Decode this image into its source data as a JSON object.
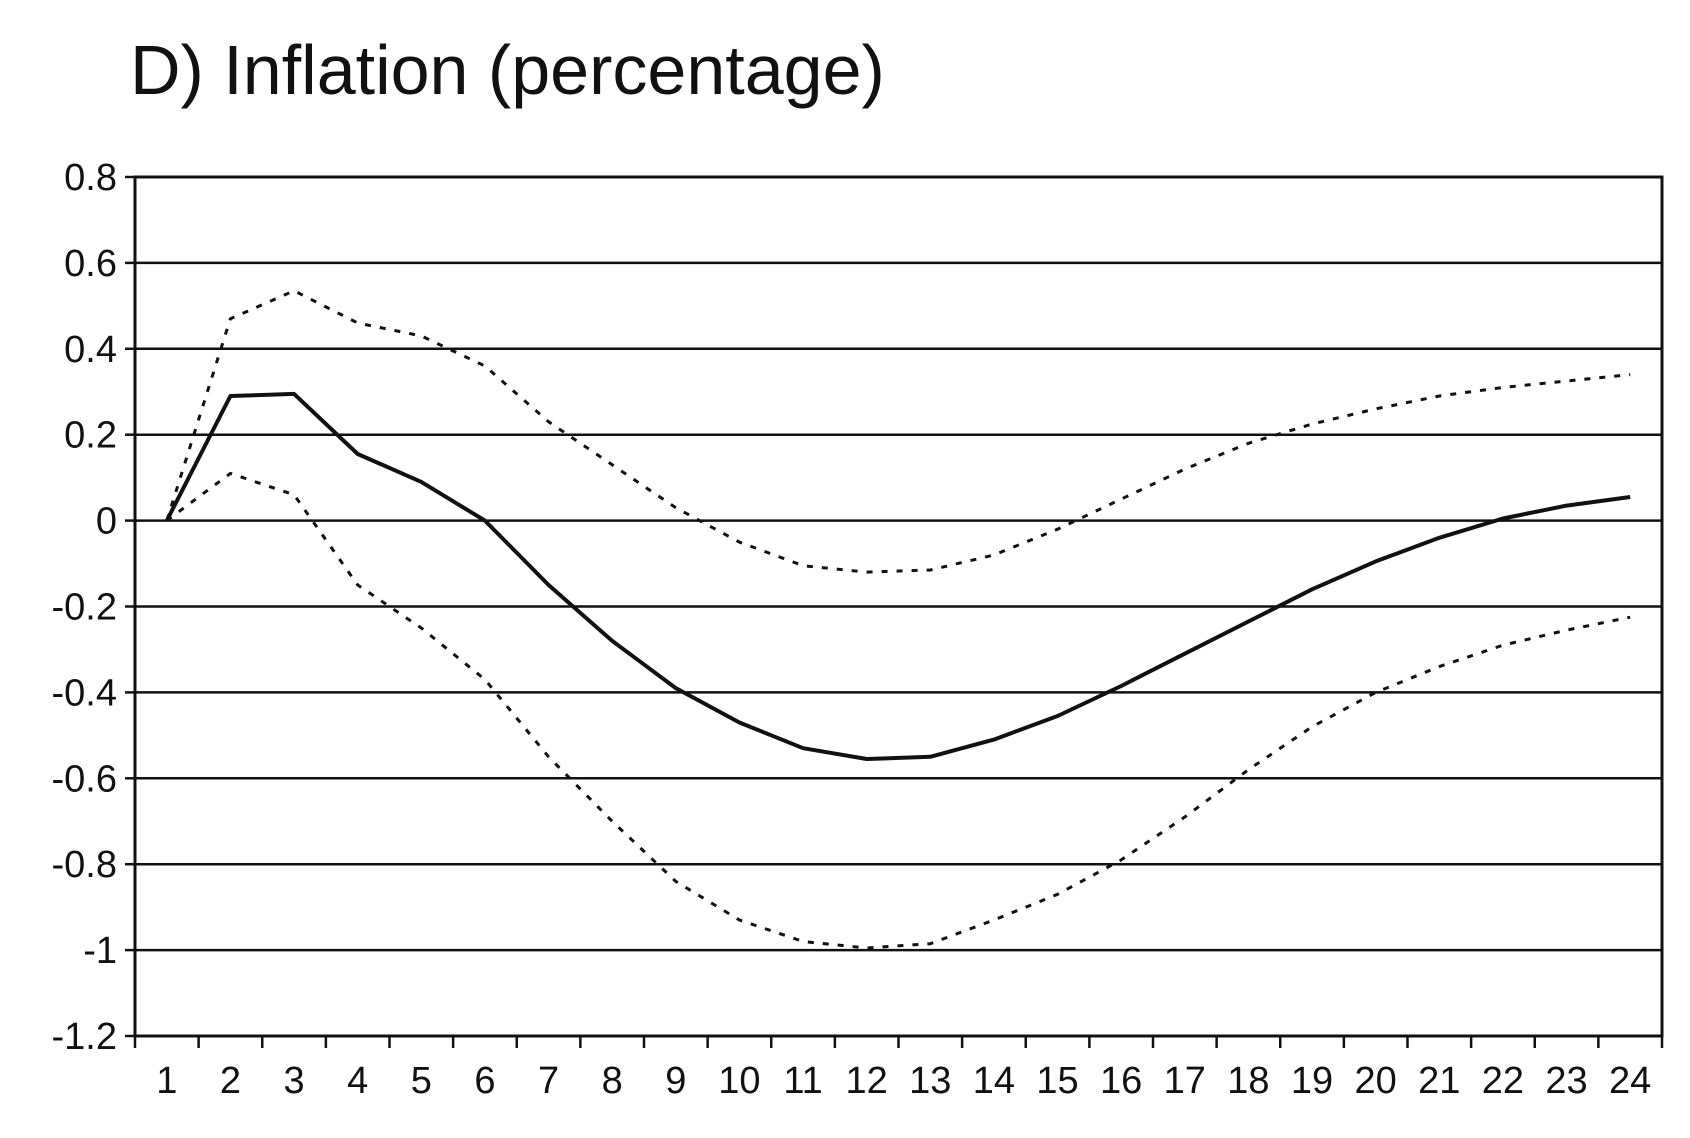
{
  "chart_data": {
    "type": "line",
    "title": "D) Inflation (percentage)",
    "xlabel": "",
    "ylabel": "",
    "x": [
      1,
      2,
      3,
      4,
      5,
      6,
      7,
      8,
      9,
      10,
      11,
      12,
      13,
      14,
      15,
      16,
      17,
      18,
      19,
      20,
      21,
      22,
      23,
      24
    ],
    "x_tick_labels": [
      "1",
      "2",
      "3",
      "4",
      "5",
      "6",
      "7",
      "8",
      "9",
      "10",
      "11",
      "12",
      "13",
      "14",
      "15",
      "16",
      "17",
      "18",
      "19",
      "20",
      "21",
      "22",
      "23",
      "24"
    ],
    "ylim": [
      -1.2,
      0.8
    ],
    "y_ticks": [
      0.8,
      0.6,
      0.4,
      0.2,
      0,
      -0.2,
      -0.4,
      -0.6,
      -0.8,
      -1,
      -1.2
    ],
    "y_tick_labels": [
      "0.8",
      "0.6",
      "0.4",
      "0.2",
      "0",
      "-0.2",
      "-0.4",
      "-0.6",
      "-0.8",
      "-1",
      "-1.2"
    ],
    "grid": "horizontal",
    "legend": "none",
    "series": [
      {
        "style": "solid",
        "color": "#111111",
        "values": [
          0.0,
          0.29,
          0.295,
          0.155,
          0.09,
          0.0,
          -0.15,
          -0.28,
          -0.39,
          -0.47,
          -0.53,
          -0.555,
          -0.55,
          -0.51,
          -0.455,
          -0.385,
          -0.31,
          -0.235,
          -0.16,
          -0.095,
          -0.04,
          0.005,
          0.035,
          0.055
        ]
      },
      {
        "style": "dotted",
        "color": "#111111",
        "values": [
          0.0,
          0.47,
          0.535,
          0.46,
          0.43,
          0.36,
          0.23,
          0.13,
          0.03,
          -0.05,
          -0.105,
          -0.12,
          -0.115,
          -0.08,
          -0.02,
          0.05,
          0.12,
          0.18,
          0.225,
          0.26,
          0.29,
          0.31,
          0.325,
          0.34
        ]
      },
      {
        "style": "dotted",
        "color": "#111111",
        "values": [
          0.0,
          0.11,
          0.06,
          -0.15,
          -0.25,
          -0.37,
          -0.55,
          -0.7,
          -0.84,
          -0.93,
          -0.98,
          -0.995,
          -0.985,
          -0.93,
          -0.87,
          -0.79,
          -0.69,
          -0.58,
          -0.48,
          -0.4,
          -0.34,
          -0.29,
          -0.255,
          -0.225
        ]
      }
    ]
  }
}
